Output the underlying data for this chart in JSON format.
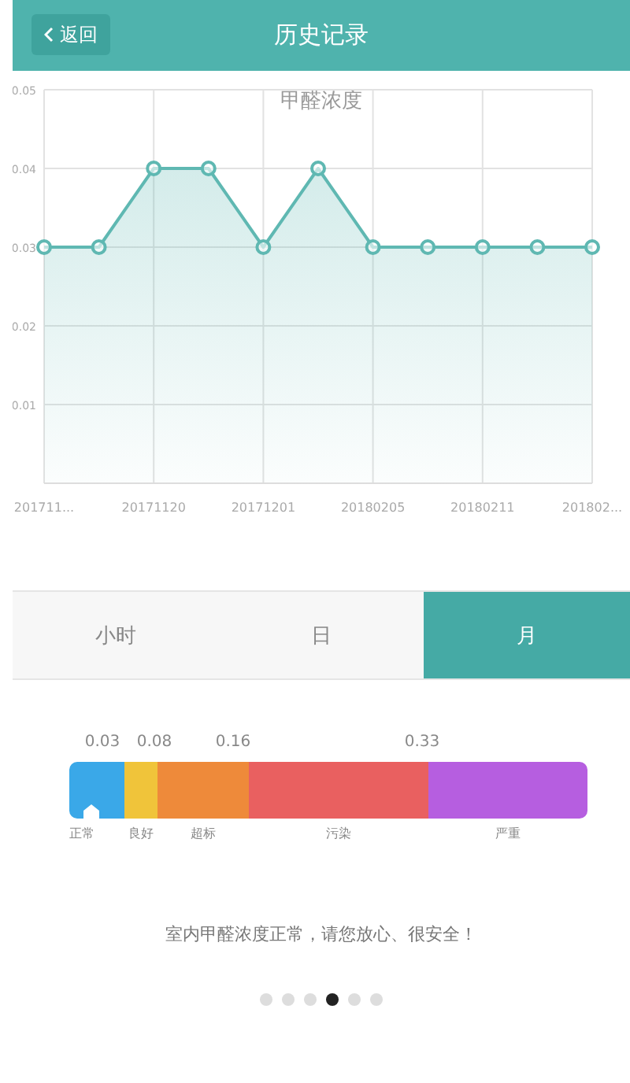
{
  "chart_data": [
    {
      "type": "other",
      "annotations": [
        "返回",
        "历史记录"
      ]
    },
    {
      "type": "area",
      "title": "甲醛浓度",
      "categories": [
        "201711...",
        null,
        "20171120",
        null,
        "20171201",
        null,
        "20180205",
        null,
        "20180211",
        null,
        "201802..."
      ],
      "series": [
        {
          "color": "#5fb8b2",
          "values": [
            0.03,
            0.03,
            0.04,
            0.04,
            0.03,
            0.04,
            0.03,
            0.03,
            0.03,
            0.03,
            0.03
          ]
        }
      ],
      "ylim": [
        0,
        0.05
      ],
      "yticks": [
        0.01,
        0.02,
        0.03,
        0.04,
        0.05
      ],
      "grid": true,
      "marker": "circle",
      "legend": false
    },
    {
      "type": "other",
      "categories": [
        "正常",
        "良好",
        "超标",
        "污染",
        "严重"
      ],
      "colors": [
        "#3aa8e8",
        "#f0c43a",
        "#ee8a3a",
        "#e96060",
        "#b65ee0"
      ],
      "annotations": [
        "小时",
        "日",
        "月",
        "0.03",
        "0.08",
        "0.16",
        "0.33",
        "室内甲醛浓度正常，请您放心、很安全！"
      ]
    }
  ]
}
